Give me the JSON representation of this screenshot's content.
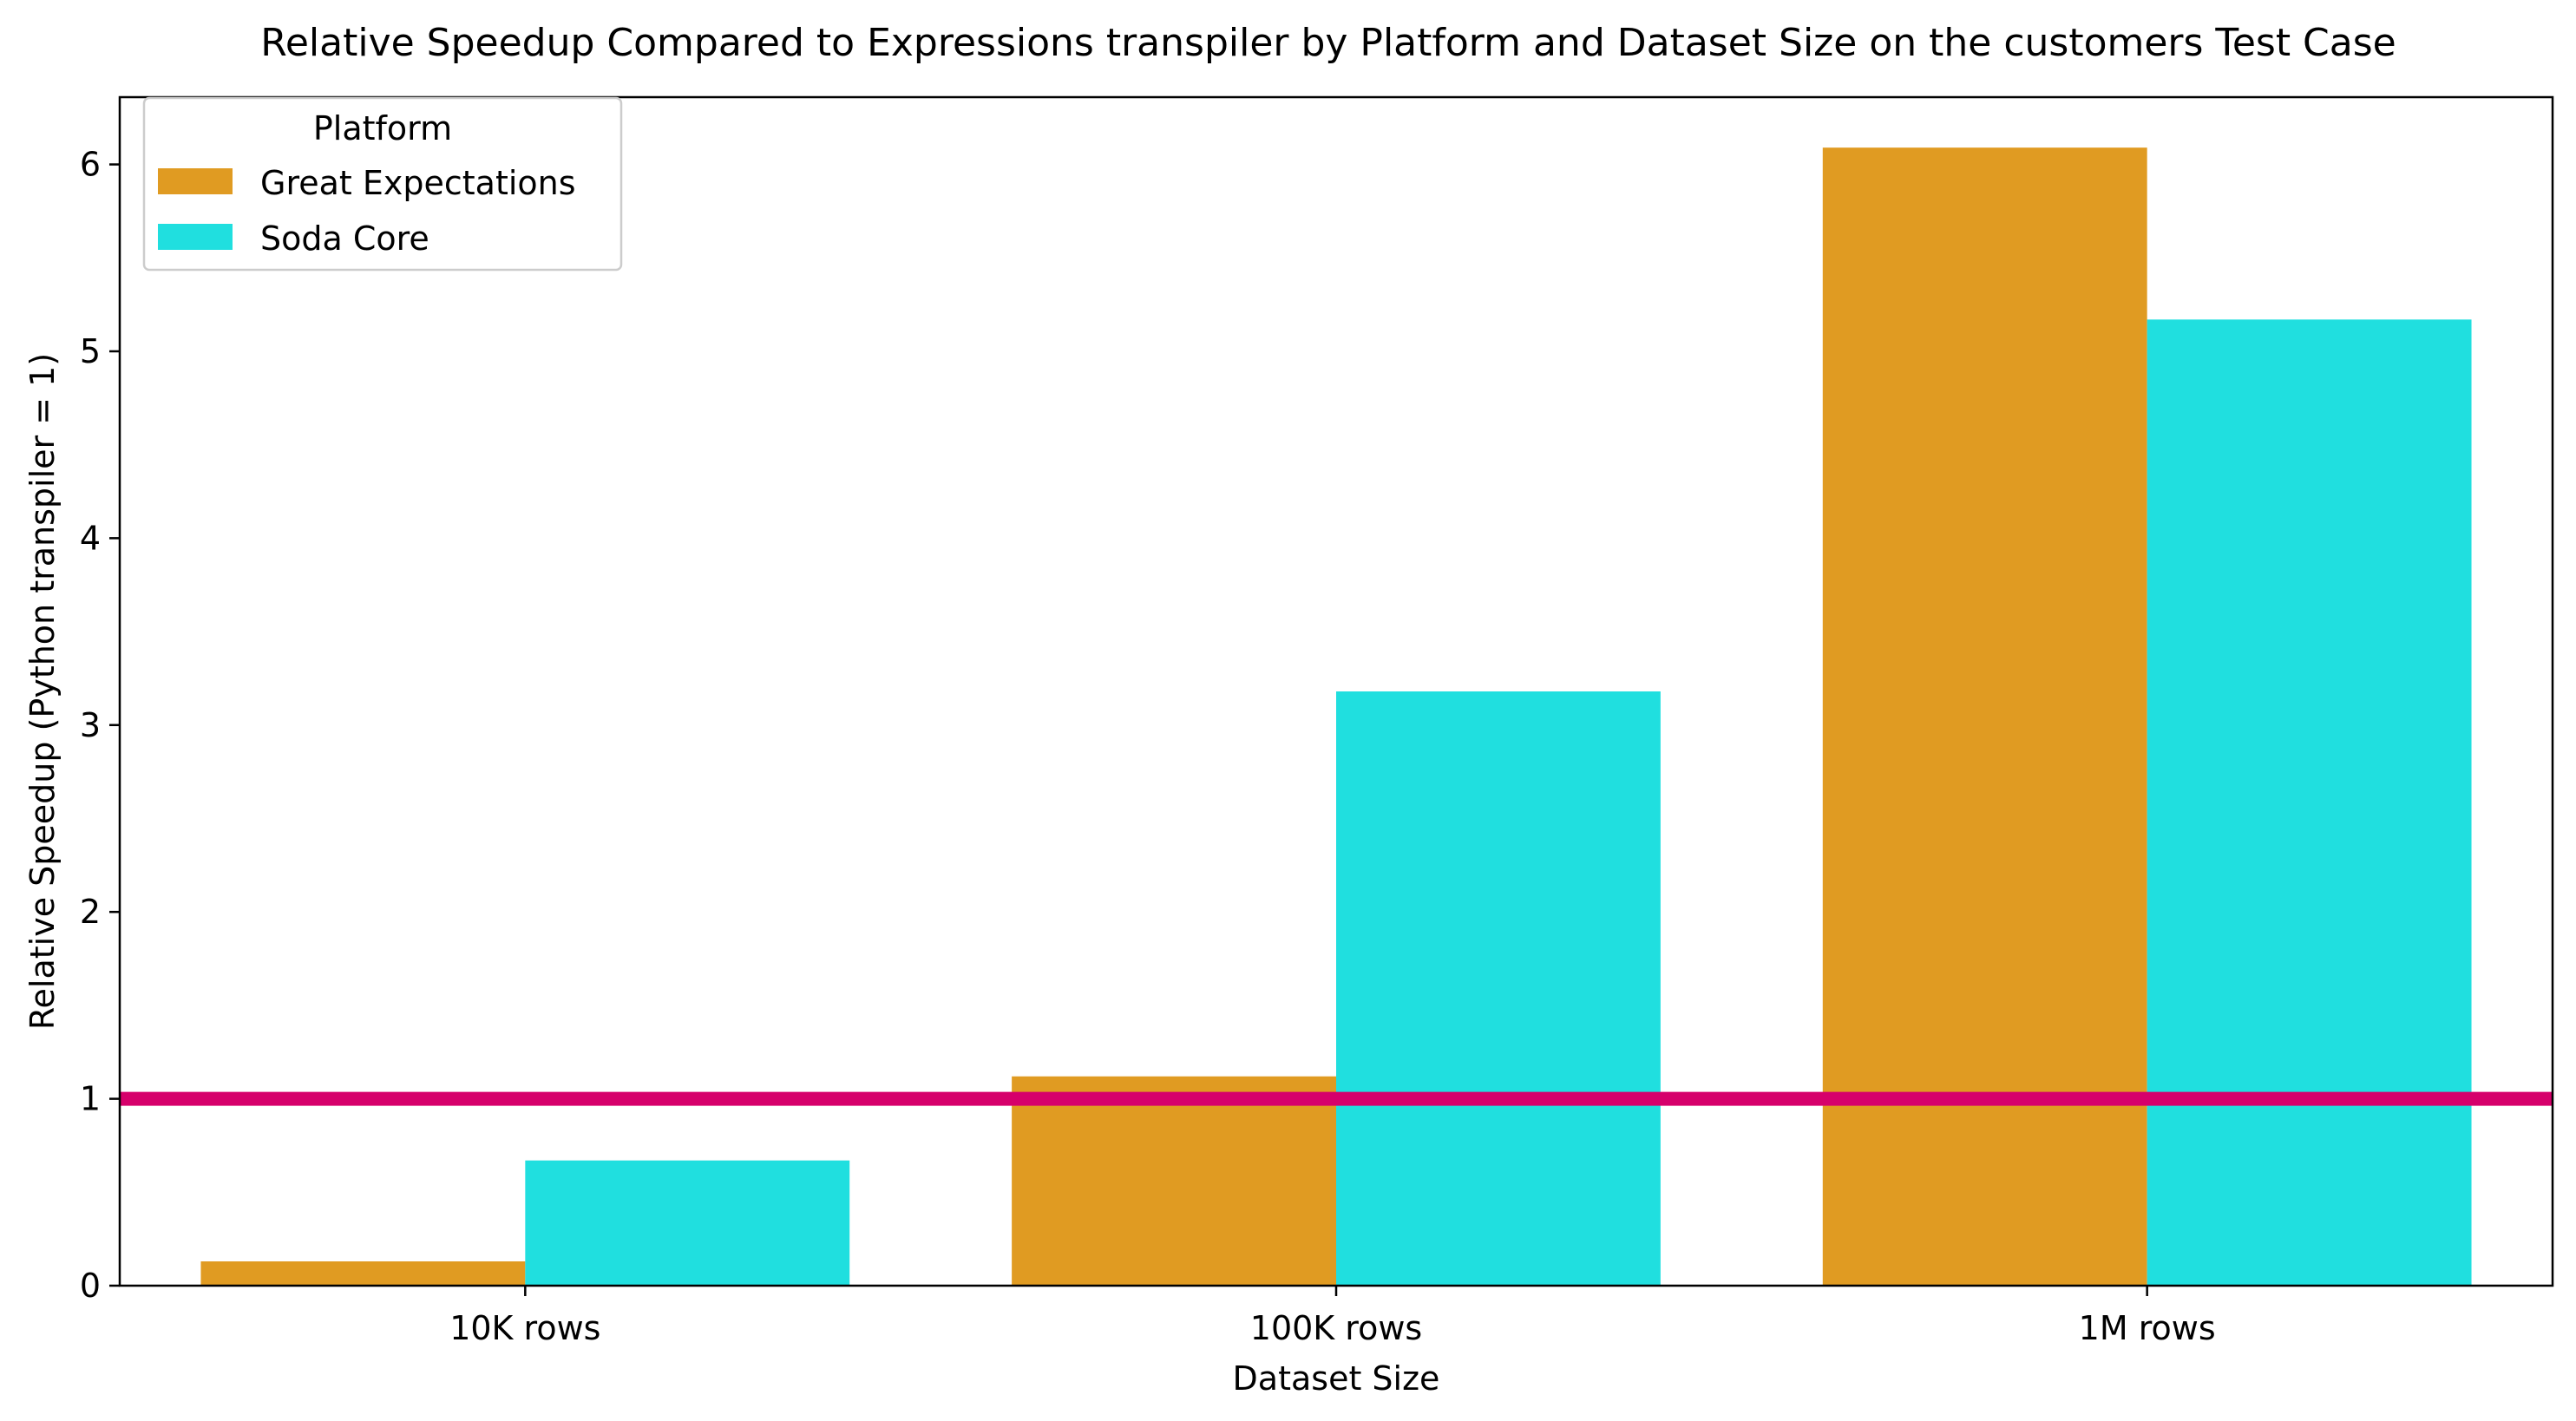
{
  "chart_data": {
    "type": "bar",
    "title": "Relative Speedup Compared to Expressions transpiler by Platform and Dataset Size on the customers Test Case",
    "xlabel": "Dataset Size",
    "ylabel": "Relative Speedup (Python transpiler = 1)",
    "categories": [
      "10K rows",
      "100K rows",
      "1M rows"
    ],
    "series": [
      {
        "name": "Great Expectations",
        "color": "#e09b22",
        "values": [
          0.13,
          1.12,
          6.09
        ]
      },
      {
        "name": "Soda Core",
        "color": "#20dfdf",
        "values": [
          0.67,
          3.18,
          5.17
        ]
      }
    ],
    "ylim": [
      0,
      6.36
    ],
    "yticks": [
      "0",
      "1",
      "2",
      "3",
      "4",
      "5",
      "6"
    ],
    "reference_line": {
      "y": 1,
      "color": "#d6006b"
    },
    "legend": {
      "title": "Platform",
      "placement": "top-left"
    },
    "grid": false
  }
}
